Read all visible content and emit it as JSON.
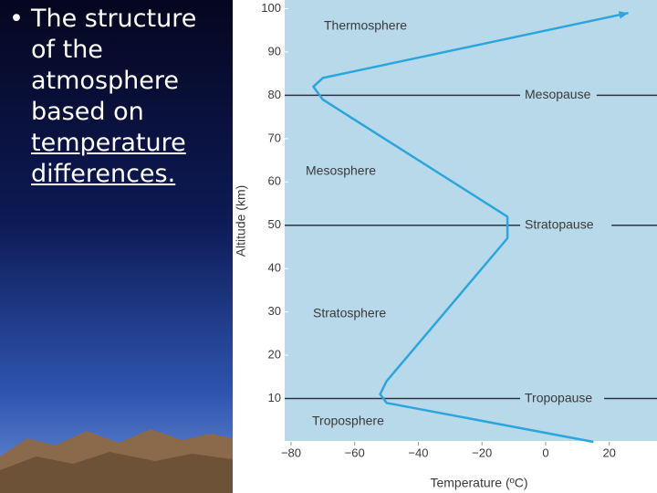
{
  "slide": {
    "bullet_lines": [
      "The structure",
      "of the",
      "atmosphere",
      "based on",
      "temperature",
      "differences."
    ]
  },
  "chart_data": {
    "type": "line",
    "xlabel": "Temperature (ºC)",
    "ylabel": "Altitude (km)",
    "x": [
      15,
      -50,
      -52,
      -50,
      -12,
      -12,
      -70,
      -73,
      -70,
      26
    ],
    "values": [
      0,
      9,
      11,
      14,
      47,
      52,
      79,
      82,
      84,
      99
    ],
    "color": "#2aa6dc",
    "xlim": [
      -82,
      35
    ],
    "ylim": [
      0,
      102
    ],
    "xticks": [
      {
        "value": -80,
        "label": "−80"
      },
      {
        "value": -60,
        "label": "−60"
      },
      {
        "value": -40,
        "label": "−40"
      },
      {
        "value": -20,
        "label": "−20"
      },
      0,
      20
    ],
    "yticks": [
      10,
      20,
      30,
      40,
      50,
      60,
      70,
      80,
      90,
      100
    ],
    "boundaries": [
      {
        "label": "Mesopause",
        "value": 80
      },
      {
        "label": "Stratopause",
        "value": 50
      },
      {
        "label": "Tropopause",
        "value": 10
      }
    ],
    "layers": [
      "Thermosphere",
      "Mesosphere",
      "Stratosphere",
      "Troposphere"
    ],
    "plot_background": "#b8d9ea"
  }
}
